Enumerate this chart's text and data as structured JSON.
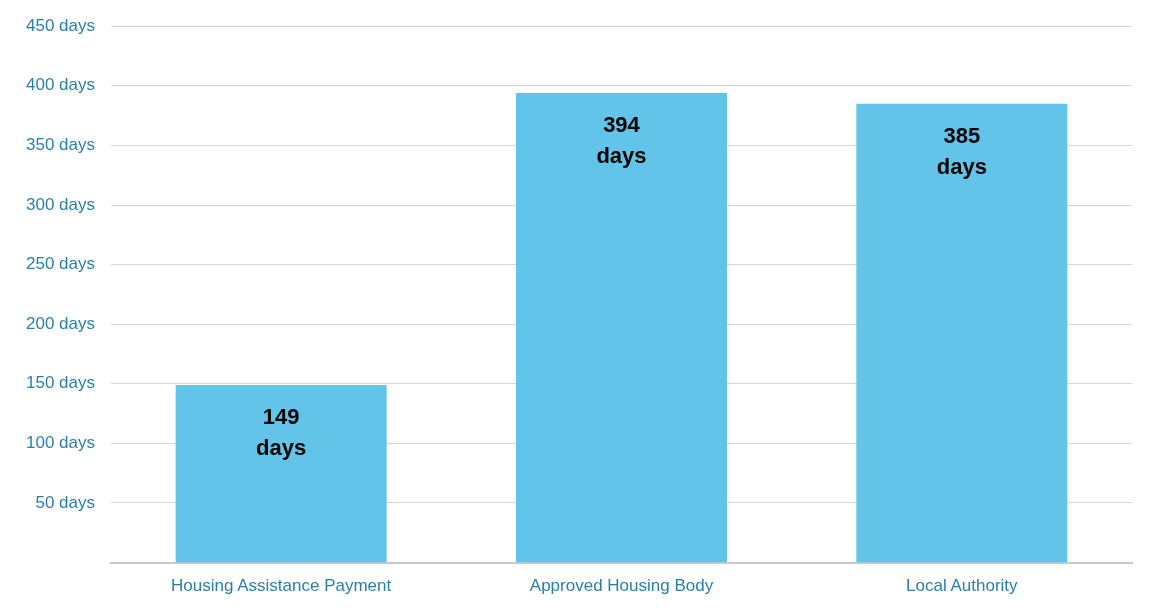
{
  "chart_data": {
    "type": "bar",
    "categories": [
      "Housing Assistance Payment",
      "Approved Housing Body",
      "Local Authority"
    ],
    "values": [
      149,
      394,
      385
    ],
    "color": "#62c4e8",
    "value_labels": [
      "149 days",
      "394 days",
      "385 days"
    ],
    "ylim": [
      0,
      450
    ],
    "yticks": [
      {
        "value": 0,
        "label": null
      },
      {
        "value": 50,
        "label": "50 days"
      },
      {
        "value": 100,
        "label": "100 days"
      },
      {
        "value": 150,
        "label": "150 days"
      },
      {
        "value": 200,
        "label": "200 days"
      },
      {
        "value": 250,
        "label": "250 days"
      },
      {
        "value": 300,
        "label": "300 days"
      },
      {
        "value": 350,
        "label": "350 days"
      },
      {
        "value": 400,
        "label": "400 days"
      },
      {
        "value": 450,
        "label": "450 days"
      }
    ],
    "grid": "y",
    "legend": false
  }
}
